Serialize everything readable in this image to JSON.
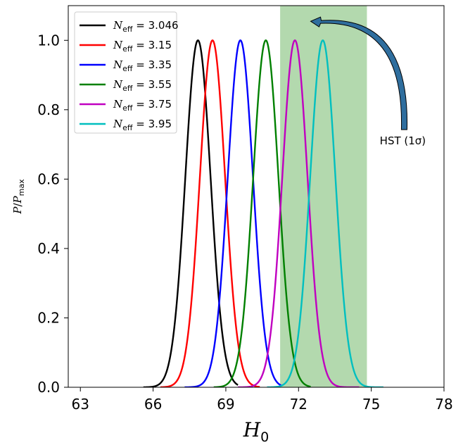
{
  "chart_data": {
    "type": "line",
    "title": "",
    "xlabel": "H0",
    "ylabel": "P/Pmax",
    "xlim": [
      62.5,
      78
    ],
    "ylim": [
      0,
      1.1
    ],
    "xticks": [
      63,
      66,
      69,
      72,
      75,
      78
    ],
    "yticks": [
      0.0,
      0.2,
      0.4,
      0.6,
      0.8,
      1.0
    ],
    "grid": false,
    "legend_position": "top-left",
    "band": {
      "xmin": 71.24,
      "xmax": 74.82,
      "color": "#b3d9ae",
      "label": "HST (1σ)"
    },
    "annotation": {
      "text": "HST (1σ)",
      "text_x": 76.3,
      "text_y": 0.71,
      "arrow_to_x": 72.5,
      "arrow_to_y": 1.055,
      "arrow_color": "#2f6e9e"
    },
    "series": [
      {
        "name": "N_eff = 3.046",
        "value": "3.046",
        "color": "#000000",
        "mean": 67.85,
        "sigma": 0.52,
        "xmin": 65.6,
        "xmax": 69.5
      },
      {
        "name": "N_eff = 3.15",
        "value": "3.15",
        "color": "#ff0000",
        "mean": 68.45,
        "sigma": 0.52,
        "xmin": 66.3,
        "xmax": 70.4
      },
      {
        "name": "N_eff = 3.35",
        "value": "3.35",
        "color": "#0000ff",
        "mean": 69.6,
        "sigma": 0.52,
        "xmin": 67.3,
        "xmax": 71.3
      },
      {
        "name": "N_eff = 3.55",
        "value": "3.55",
        "color": "#008000",
        "mean": 70.65,
        "sigma": 0.52,
        "xmin": 68.5,
        "xmax": 72.5
      },
      {
        "name": "N_eff = 3.75",
        "value": "3.75",
        "color": "#c000c0",
        "mean": 71.85,
        "sigma": 0.52,
        "xmin": 69.5,
        "xmax": 74.5
      },
      {
        "name": "N_eff = 3.95",
        "value": "3.95",
        "color": "#00bfbf",
        "mean": 73.0,
        "sigma": 0.52,
        "xmin": 70.7,
        "xmax": 75.5
      }
    ]
  },
  "legend": {
    "symbol_main": "N",
    "symbol_sub": "eff",
    "equals": " = "
  },
  "axes": {
    "x_symbol": "H",
    "x_subscript": "0",
    "y_p": "P",
    "y_slash": "/",
    "y_pmax": "P",
    "y_sub": "max"
  }
}
